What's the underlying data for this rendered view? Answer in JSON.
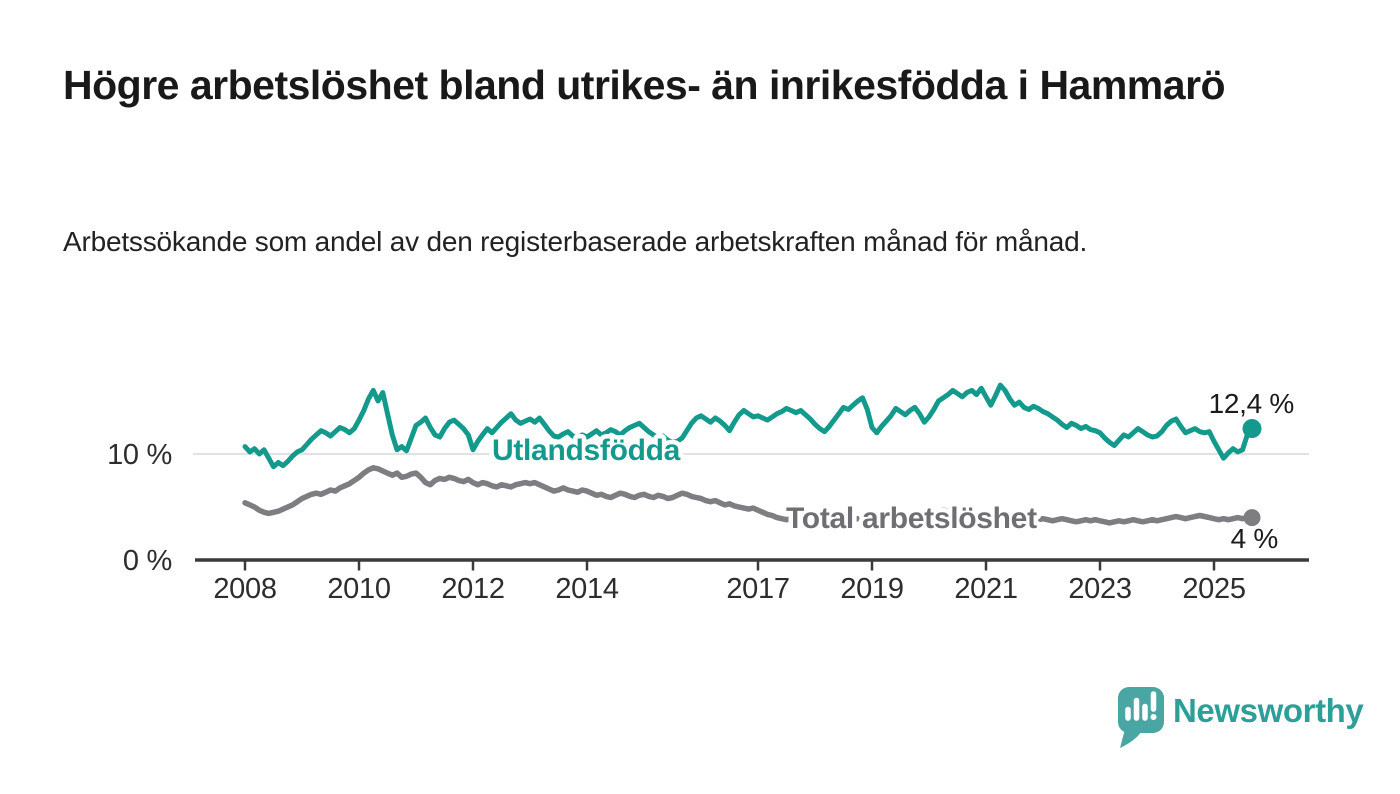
{
  "chart_data": {
    "type": "line",
    "title": "Högre arbetslöshet bland utrikes- än inrikesfödda i Hammarö",
    "subtitle": "Arbetssökande som andel av den registerbaserade arbetskraften månad för månad.",
    "frequency": "monthly",
    "x_start": "2008-01",
    "x_end": "2025-09",
    "xlim": [
      2007.1,
      2026.7
    ],
    "ylim": [
      0,
      18.5
    ],
    "grid": "horizontal gridline at 10 % only",
    "x_tick_labels": [
      "2008",
      "2010",
      "2012",
      "2014",
      "2017",
      "2019",
      "2021",
      "2023",
      "2025"
    ],
    "x_tick_years": [
      2008,
      2010,
      2012,
      2014,
      2017,
      2019,
      2021,
      2023,
      2025
    ],
    "y_ticks": [
      {
        "label": "0 %",
        "value": 0
      },
      {
        "label": "10 %",
        "value": 10
      }
    ],
    "colors": {
      "utlandsfodda": "#149a8d",
      "total": "#7d7d82",
      "axis": "#3a3a3a",
      "gridline": "#e2e2e2",
      "annotation_text": "#1b1b1b"
    },
    "legend_position": "inline labels on lines",
    "series": [
      {
        "name": "Utlandsfödda",
        "color": "#149a8d",
        "end_label": "12,4 %",
        "end_value": 12.4,
        "values": [
          10.7,
          10.2,
          10.5,
          10.0,
          10.4,
          9.6,
          8.8,
          9.2,
          8.9,
          9.3,
          9.8,
          10.2,
          10.4,
          10.9,
          11.4,
          11.8,
          12.2,
          12.0,
          11.7,
          12.1,
          12.5,
          12.3,
          12.0,
          12.4,
          13.2,
          14.1,
          15.2,
          16.0,
          15.0,
          15.8,
          13.8,
          11.8,
          10.4,
          10.7,
          10.3,
          11.5,
          12.7,
          13.0,
          13.4,
          12.5,
          11.8,
          11.6,
          12.4,
          13.0,
          13.2,
          12.8,
          12.4,
          11.8,
          10.4,
          11.2,
          11.8,
          12.4,
          12.0,
          12.5,
          13.0,
          13.4,
          13.8,
          13.2,
          12.9,
          13.1,
          13.3,
          13.0,
          13.4,
          12.8,
          12.2,
          11.7,
          11.6,
          11.9,
          12.1,
          11.7,
          11.5,
          11.8,
          11.6,
          11.9,
          12.2,
          11.8,
          12.0,
          12.3,
          12.1,
          11.8,
          12.2,
          12.5,
          12.7,
          12.9,
          12.5,
          12.1,
          11.8,
          11.5,
          11.7,
          11.3,
          11.1,
          11.2,
          11.5,
          12.2,
          12.9,
          13.4,
          13.6,
          13.3,
          13.0,
          13.4,
          13.1,
          12.7,
          12.2,
          13.0,
          13.7,
          14.1,
          13.8,
          13.5,
          13.6,
          13.4,
          13.2,
          13.5,
          13.8,
          14.0,
          14.3,
          14.1,
          13.9,
          14.1,
          13.7,
          13.3,
          12.8,
          12.4,
          12.1,
          12.6,
          13.2,
          13.8,
          14.4,
          14.2,
          14.6,
          15.0,
          15.3,
          14.2,
          12.5,
          12.0,
          12.6,
          13.1,
          13.6,
          14.3,
          14.0,
          13.7,
          14.1,
          14.4,
          13.8,
          13.0,
          13.5,
          14.2,
          15.0,
          15.3,
          15.6,
          16.0,
          15.7,
          15.4,
          15.8,
          16.0,
          15.6,
          16.2,
          15.4,
          14.6,
          15.5,
          16.5,
          16.0,
          15.2,
          14.6,
          14.9,
          14.4,
          14.2,
          14.5,
          14.3,
          14.0,
          13.8,
          13.5,
          13.2,
          12.8,
          12.5,
          12.9,
          12.7,
          12.4,
          12.6,
          12.3,
          12.2,
          12.0,
          11.5,
          11.1,
          10.8,
          11.3,
          11.8,
          11.6,
          12.0,
          12.4,
          12.1,
          11.8,
          11.6,
          11.7,
          12.1,
          12.7,
          13.1,
          13.3,
          12.6,
          12.0,
          12.2,
          12.4,
          12.1,
          12.0,
          12.1,
          11.2,
          10.4,
          9.6,
          10.1,
          10.5,
          10.2,
          10.4,
          11.8,
          12.4
        ]
      },
      {
        "name": "Total arbetslöshet",
        "color": "#7d7d82",
        "end_label": "4 %",
        "end_value": 4.0,
        "values": [
          5.4,
          5.2,
          5.0,
          4.7,
          4.5,
          4.4,
          4.5,
          4.6,
          4.8,
          5.0,
          5.2,
          5.5,
          5.8,
          6.0,
          6.2,
          6.3,
          6.2,
          6.4,
          6.6,
          6.5,
          6.8,
          7.0,
          7.2,
          7.5,
          7.8,
          8.2,
          8.5,
          8.7,
          8.6,
          8.4,
          8.2,
          8.0,
          8.2,
          7.8,
          7.9,
          8.1,
          8.2,
          7.8,
          7.3,
          7.1,
          7.5,
          7.7,
          7.6,
          7.8,
          7.7,
          7.5,
          7.4,
          7.6,
          7.3,
          7.1,
          7.3,
          7.2,
          7.0,
          6.9,
          7.1,
          7.0,
          6.9,
          7.1,
          7.2,
          7.3,
          7.2,
          7.3,
          7.1,
          6.9,
          6.7,
          6.5,
          6.6,
          6.8,
          6.6,
          6.5,
          6.4,
          6.6,
          6.5,
          6.3,
          6.1,
          6.2,
          6.0,
          5.9,
          6.1,
          6.3,
          6.2,
          6.0,
          5.9,
          6.1,
          6.2,
          6.0,
          5.9,
          6.1,
          6.0,
          5.8,
          5.9,
          6.1,
          6.3,
          6.2,
          6.0,
          5.9,
          5.8,
          5.6,
          5.5,
          5.6,
          5.4,
          5.2,
          5.3,
          5.1,
          5.0,
          4.9,
          4.8,
          4.9,
          4.7,
          4.5,
          4.3,
          4.2,
          4.0,
          3.9,
          3.8,
          3.9,
          4.0,
          3.9,
          3.8,
          3.9,
          3.8,
          3.7,
          3.6,
          3.7,
          3.8,
          3.7,
          3.6,
          3.7,
          3.8,
          3.9,
          3.8,
          3.9,
          4.0,
          3.9,
          4.0,
          4.1,
          4.0,
          4.1,
          4.2,
          4.1,
          4.2,
          4.3,
          4.2,
          4.3,
          4.2,
          4.4,
          4.6,
          4.7,
          4.6,
          4.5,
          4.4,
          4.3,
          4.2,
          4.1,
          4.0,
          4.0,
          4.1,
          4.0,
          3.9,
          3.8,
          3.9,
          3.8,
          3.7,
          3.8,
          3.7,
          3.8,
          3.9,
          3.8,
          3.9,
          3.8,
          3.7,
          3.8,
          3.9,
          3.8,
          3.7,
          3.6,
          3.7,
          3.8,
          3.7,
          3.8,
          3.7,
          3.6,
          3.5,
          3.6,
          3.7,
          3.6,
          3.7,
          3.8,
          3.7,
          3.6,
          3.7,
          3.8,
          3.7,
          3.8,
          3.9,
          4.0,
          4.1,
          4.0,
          3.9,
          4.0,
          4.1,
          4.2,
          4.1,
          4.0,
          3.9,
          3.8,
          3.9,
          3.8,
          3.9,
          4.0,
          3.9,
          4.0,
          4.0
        ]
      }
    ]
  },
  "branding": {
    "logo_text": "Newsworthy",
    "logo_icon": "speech-bubble-bar-chart-icon",
    "logo_color": "#2d9f99",
    "logo_icon_color": "#4aa6a2"
  }
}
